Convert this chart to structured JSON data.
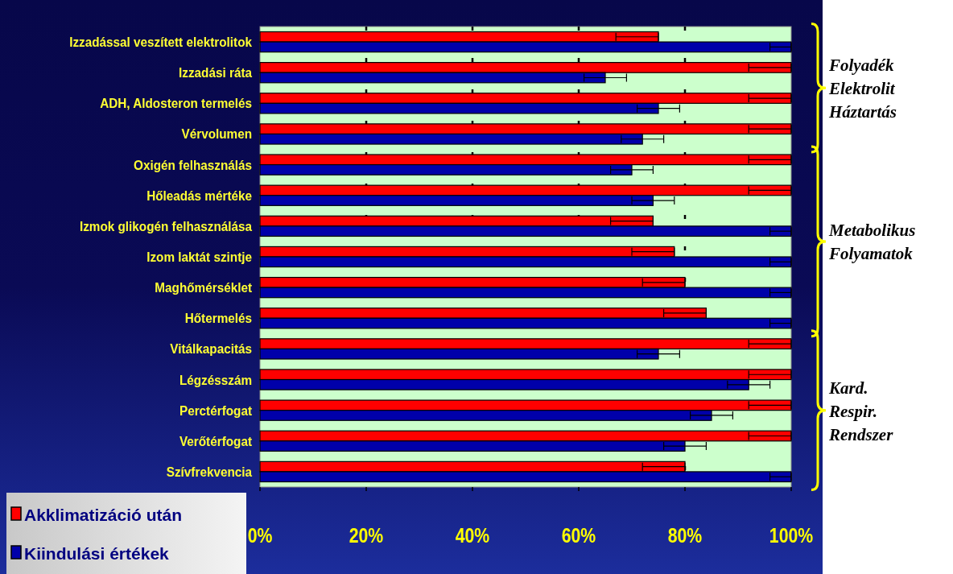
{
  "chart_data": {
    "type": "bar",
    "orientation": "horizontal",
    "categories": [
      "Izzadással veszített elektrolitok",
      "Izzadási ráta",
      "ADH, Aldosteron termelés",
      "Vérvolumen",
      "Oxigén felhasználás",
      "Hőleadás mértéke",
      "Izmok glikogén felhasználása",
      "Izom laktát szintje",
      "Maghőmérséklet",
      "Hőtermelés",
      "Vitálkapacitás",
      "Légzésszám",
      "Perctérfogat",
      "Verőtérfogat",
      "Szívfrekvencia"
    ],
    "series": [
      {
        "name": "Akklimatizáció után",
        "color": "#ff0000",
        "values": [
          75,
          100,
          100,
          100,
          100,
          100,
          74,
          78,
          80,
          84,
          100,
          100,
          100,
          100,
          80
        ],
        "errors": [
          [
            67,
            75
          ],
          [
            92,
            100
          ],
          [
            92,
            100
          ],
          [
            92,
            100
          ],
          [
            92,
            100
          ],
          [
            92,
            100
          ],
          [
            66,
            74
          ],
          [
            70,
            78
          ],
          [
            72,
            80
          ],
          [
            76,
            84
          ],
          [
            92,
            100
          ],
          [
            92,
            100
          ],
          [
            92,
            100
          ],
          [
            92,
            100
          ],
          [
            72,
            80
          ]
        ]
      },
      {
        "name": "Kiindulási értékek",
        "color": "#0000aa",
        "values": [
          100,
          65,
          75,
          72,
          70,
          74,
          100,
          100,
          100,
          100,
          75,
          92,
          85,
          80,
          100
        ],
        "errors": [
          [
            96,
            100
          ],
          [
            61,
            69
          ],
          [
            71,
            79
          ],
          [
            68,
            76
          ],
          [
            66,
            74
          ],
          [
            70,
            78
          ],
          [
            96,
            100
          ],
          [
            96,
            100
          ],
          [
            96,
            100
          ],
          [
            96,
            100
          ],
          [
            71,
            79
          ],
          [
            88,
            96
          ],
          [
            81,
            89
          ],
          [
            76,
            84
          ],
          [
            96,
            100
          ]
        ]
      }
    ],
    "xlim": [
      0,
      100
    ],
    "xticks": [
      {
        "value": 0,
        "label": "0%"
      },
      {
        "value": 20,
        "label": "20%"
      },
      {
        "value": 40,
        "label": "40%"
      },
      {
        "value": 60,
        "label": "60%"
      },
      {
        "value": 80,
        "label": "80%"
      },
      {
        "value": 100,
        "label": "100%"
      }
    ],
    "grid": "x",
    "legend": "bottom left",
    "annotations": [
      "Folyadék\nElektrolit\nHáztartás",
      "Metabolikus\nFolyamatok",
      "Kard.\nRespir.\nRendszer"
    ]
  }
}
